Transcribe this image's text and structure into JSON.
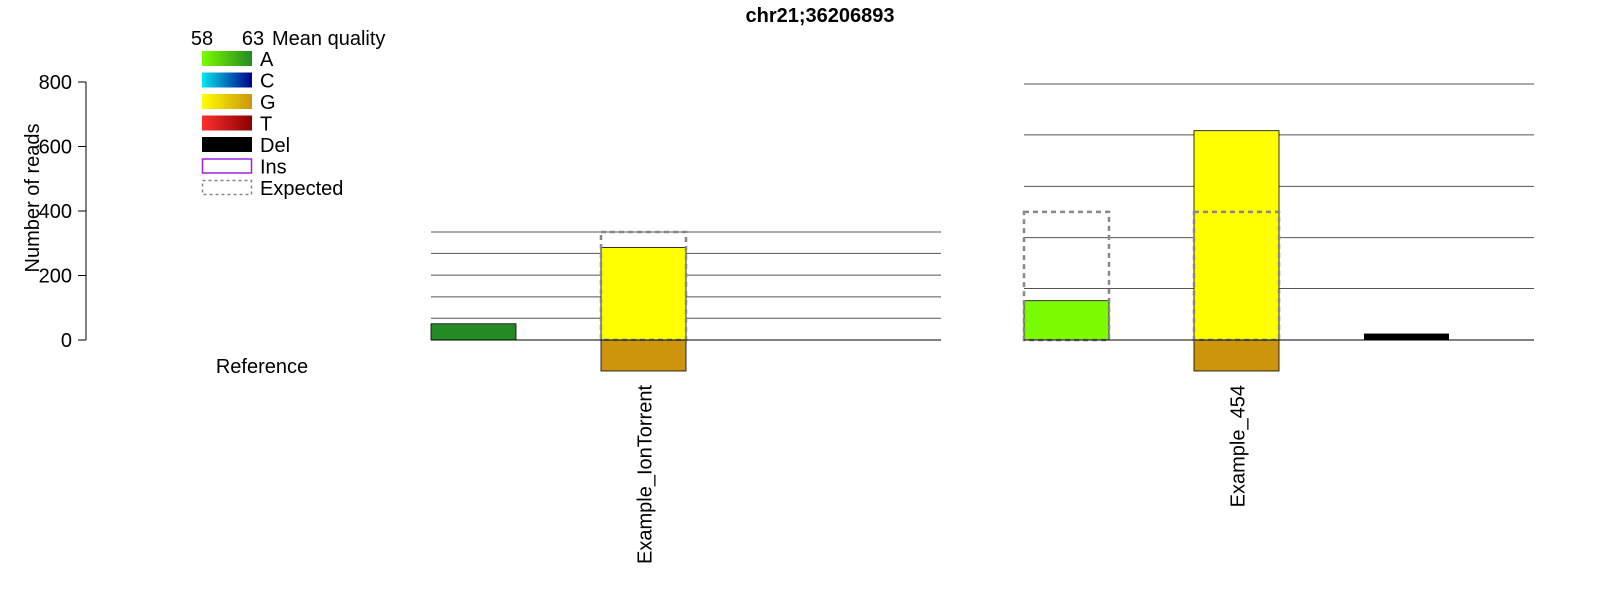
{
  "chart_data": {
    "type": "bar",
    "title": "chr21;36206893",
    "ylabel": "Number of reads",
    "ylim": [
      0,
      800
    ],
    "yticks": [
      0,
      200,
      400,
      600,
      800
    ],
    "legend": {
      "scale_label": "Mean quality",
      "scale_min": "58",
      "scale_max": "63",
      "placement": "top-left",
      "entries": [
        {
          "label": "A",
          "gradient": [
            "#7cfc00",
            "#228b22"
          ]
        },
        {
          "label": "C",
          "gradient": [
            "#00e5ee",
            "#00008b"
          ]
        },
        {
          "label": "G",
          "gradient": [
            "#ffff00",
            "#cd950c"
          ]
        },
        {
          "label": "T",
          "gradient": [
            "#ff3030",
            "#8b0000"
          ]
        },
        {
          "label": "Del",
          "solid": "#000000"
        },
        {
          "label": "Ins",
          "outline": "#a020f0"
        },
        {
          "label": "Expected",
          "dashed": "#888888"
        }
      ]
    },
    "reference_label": "Reference",
    "groups": [
      {
        "name": "Example_IonTorrent",
        "ref_base": "G",
        "ref_color": "#cd950c",
        "gridlines": [
          67,
          133,
          200,
          267,
          333
        ],
        "bars": [
          {
            "base": "A",
            "count": 50,
            "color": "#228b22"
          },
          {
            "base": "G",
            "count": 285,
            "color": "#ffff00"
          },
          {
            "base": "Del",
            "count": 0,
            "color": "#000000"
          }
        ],
        "expected": [
          null,
          333,
          null
        ]
      },
      {
        "name": "Example_454",
        "ref_base": "G",
        "ref_color": "#cd950c",
        "gridlines": [
          160,
          318,
          477,
          637,
          795
        ],
        "bars": [
          {
            "base": "A",
            "count": 122,
            "color": "#7cfc00"
          },
          {
            "base": "G",
            "count": 650,
            "color": "#ffff00"
          },
          {
            "base": "Del",
            "count": 20,
            "color": "#000000"
          }
        ],
        "expected": [
          398,
          398,
          null
        ]
      }
    ]
  }
}
